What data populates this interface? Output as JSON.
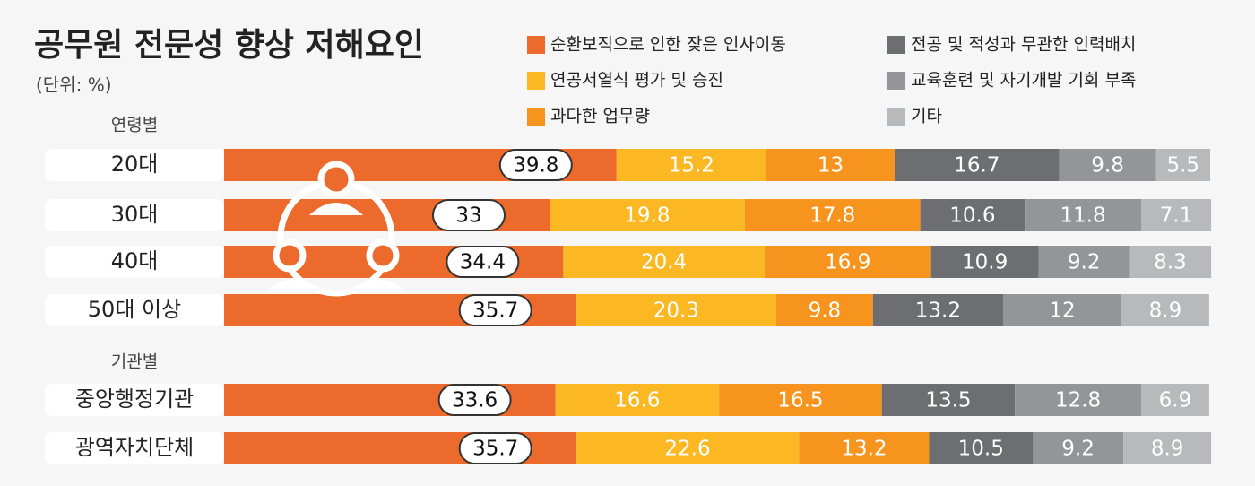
{
  "chart_data": {
    "type": "stacked-bar-horizontal",
    "title": "공무원 전문성 향상 저해요인",
    "subtitle": "(단위: %)",
    "annotations": [
      "연령별",
      "기관별"
    ],
    "categories": [
      "20대",
      "30대",
      "40대",
      "50대 이상",
      "중앙행정기관",
      "광역자치단체"
    ],
    "xlim": [
      0,
      100
    ],
    "series": [
      {
        "name": "순환보직으로 인한 잦은 인사이동",
        "color": "#ec6a2c",
        "values": [
          39.8,
          33,
          34.4,
          35.7,
          33.6,
          35.7
        ]
      },
      {
        "name": "연공서열식 평가 및 승진",
        "color": "#fbb823",
        "values": [
          15.2,
          19.8,
          20.4,
          20.3,
          16.6,
          22.6
        ]
      },
      {
        "name": "과다한 업무량",
        "color": "#f7941d",
        "values": [
          13,
          17.8,
          16.9,
          9.8,
          16.5,
          13.2
        ]
      },
      {
        "name": "전공 및 적성과 무관한 인력배치",
        "color": "#6d6e71",
        "values": [
          16.7,
          10.6,
          10.9,
          13.2,
          13.5,
          10.5
        ]
      },
      {
        "name": "교육훈련 및 자기개발 기회 부족",
        "color": "#949598",
        "values": [
          9.8,
          11.8,
          9.2,
          12,
          12.8,
          9.2
        ]
      },
      {
        "name": "기타",
        "color": "#b8b9bb",
        "values": [
          5.5,
          7.1,
          8.3,
          8.9,
          6.9,
          8.9
        ]
      }
    ]
  }
}
